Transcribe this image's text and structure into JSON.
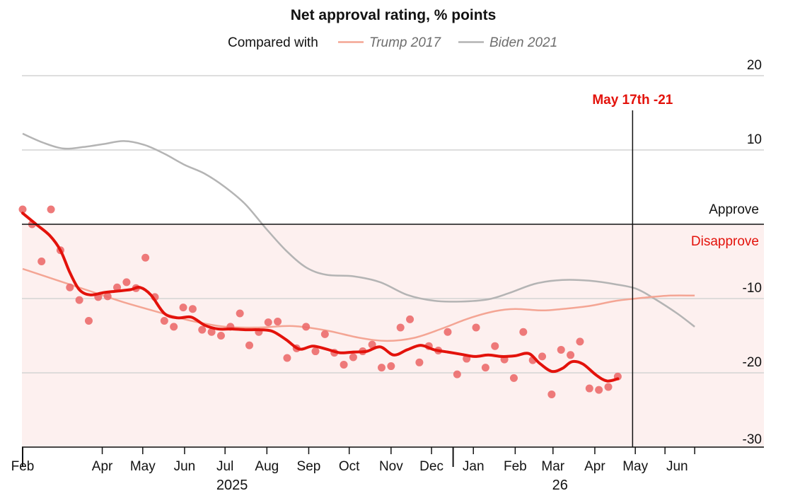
{
  "colors": {
    "main": "#e3120b",
    "dots": "#ec6c6c",
    "trump": "#f4a594",
    "biden": "#b4b4b4",
    "disapprove_fill": "#fdf0ef",
    "grid": "#d4d4d4",
    "axis": "#121212"
  },
  "chart_data": {
    "type": "scatter",
    "title": "Net approval rating, % points",
    "legend": {
      "lead": "Compared with",
      "placement": "top-center",
      "entries": [
        "Trump 2017",
        "Biden 2021"
      ]
    },
    "ylim": [
      -31,
      21
    ],
    "yticks": [
      20,
      10,
      -10,
      -20,
      -30
    ],
    "grid": true,
    "zero_labels": {
      "above": "Approve",
      "below": "Disapprove"
    },
    "x_range_days": [
      0,
      510
    ],
    "xticks": [
      {
        "label": "Feb",
        "day": 0
      },
      {
        "label": "Apr",
        "day": 59
      },
      {
        "label": "May",
        "day": 89
      },
      {
        "label": "Jun",
        "day": 120
      },
      {
        "label": "Jul",
        "day": 150
      },
      {
        "label": "Aug",
        "day": 181
      },
      {
        "label": "Sep",
        "day": 212
      },
      {
        "label": "Oct",
        "day": 242
      },
      {
        "label": "Nov",
        "day": 273
      },
      {
        "label": "Dec",
        "day": 303
      },
      {
        "label": "Jan",
        "day": 334
      },
      {
        "label": "Feb",
        "day": 365
      },
      {
        "label": "Mar",
        "day": 393
      },
      {
        "label": "Apr",
        "day": 424
      },
      {
        "label": "May",
        "day": 454
      },
      {
        "label": "Jun",
        "day": 485
      }
    ],
    "extra_ticks_days": [
      0,
      59,
      89,
      120,
      150,
      181,
      212,
      242,
      273,
      303,
      319,
      334,
      365,
      393,
      424,
      454,
      476,
      498
    ],
    "year_labels": [
      {
        "label": "2025",
        "day": 150
      },
      {
        "label": "26",
        "day": 393
      }
    ],
    "annotation": {
      "text": "May 17th -21",
      "day": 452
    },
    "series": [
      {
        "name": "Net approval",
        "kind": "points",
        "points": [
          [
            0,
            2
          ],
          [
            7,
            0
          ],
          [
            14,
            -5
          ],
          [
            21,
            2
          ],
          [
            28,
            -3.5
          ],
          [
            35,
            -8.5
          ],
          [
            42,
            -10.2
          ],
          [
            49,
            -13
          ],
          [
            56,
            -9.8
          ],
          [
            63,
            -9.7
          ],
          [
            70,
            -8.5
          ],
          [
            77,
            -7.8
          ],
          [
            84,
            -8.6
          ],
          [
            91,
            -4.5
          ],
          [
            98,
            -9.8
          ],
          [
            105,
            -13
          ],
          [
            112,
            -13.8
          ],
          [
            119,
            -11.2
          ],
          [
            126,
            -11.4
          ],
          [
            133,
            -14.2
          ],
          [
            140,
            -14.5
          ],
          [
            147,
            -15
          ],
          [
            154,
            -13.8
          ],
          [
            161,
            -12
          ],
          [
            168,
            -16.3
          ],
          [
            175,
            -14.5
          ],
          [
            182,
            -13.2
          ],
          [
            189,
            -13.1
          ],
          [
            196,
            -18
          ],
          [
            203,
            -16.7
          ],
          [
            210,
            -13.8
          ],
          [
            217,
            -17.1
          ],
          [
            224,
            -14.8
          ],
          [
            231,
            -17.3
          ],
          [
            238,
            -18.9
          ],
          [
            245,
            -17.9
          ],
          [
            252,
            -17.1
          ],
          [
            259,
            -16.2
          ],
          [
            266,
            -19.3
          ],
          [
            273,
            -19.1
          ],
          [
            280,
            -13.9
          ],
          [
            287,
            -12.8
          ],
          [
            294,
            -18.6
          ],
          [
            301,
            -16.4
          ],
          [
            308,
            -17
          ],
          [
            315,
            -14.5
          ],
          [
            322,
            -20.2
          ],
          [
            329,
            -18.1
          ],
          [
            336,
            -13.9
          ],
          [
            343,
            -19.3
          ],
          [
            350,
            -16.4
          ],
          [
            357,
            -18.2
          ],
          [
            364,
            -20.7
          ],
          [
            371,
            -14.5
          ],
          [
            378,
            -18.3
          ],
          [
            385,
            -17.8
          ],
          [
            392,
            -22.9
          ],
          [
            399,
            -16.9
          ],
          [
            406,
            -17.6
          ],
          [
            413,
            -15.8
          ],
          [
            420,
            -22.1
          ],
          [
            427,
            -22.3
          ],
          [
            434,
            -21.9
          ],
          [
            441,
            -20.5
          ]
        ]
      },
      {
        "name": "Net approval average",
        "kind": "trend",
        "points": [
          [
            0,
            1.5
          ],
          [
            10,
            0
          ],
          [
            20,
            -1.5
          ],
          [
            28,
            -3.5
          ],
          [
            35,
            -6.5
          ],
          [
            42,
            -8.8
          ],
          [
            50,
            -9.5
          ],
          [
            60,
            -9.2
          ],
          [
            70,
            -9
          ],
          [
            80,
            -8.8
          ],
          [
            87,
            -8.5
          ],
          [
            95,
            -9.5
          ],
          [
            105,
            -12
          ],
          [
            115,
            -12.6
          ],
          [
            125,
            -12.5
          ],
          [
            135,
            -13.6
          ],
          [
            145,
            -14.1
          ],
          [
            155,
            -14.1
          ],
          [
            165,
            -14.2
          ],
          [
            175,
            -14.2
          ],
          [
            185,
            -14.4
          ],
          [
            195,
            -15.5
          ],
          [
            205,
            -16.8
          ],
          [
            215,
            -16.4
          ],
          [
            225,
            -16.8
          ],
          [
            235,
            -17.3
          ],
          [
            245,
            -17.2
          ],
          [
            255,
            -17.1
          ],
          [
            265,
            -16.5
          ],
          [
            275,
            -17.6
          ],
          [
            285,
            -16.9
          ],
          [
            295,
            -16.3
          ],
          [
            305,
            -16.9
          ],
          [
            315,
            -17.2
          ],
          [
            325,
            -17.5
          ],
          [
            335,
            -17.8
          ],
          [
            345,
            -17.6
          ],
          [
            355,
            -17.8
          ],
          [
            365,
            -17.7
          ],
          [
            375,
            -17.4
          ],
          [
            383,
            -18.7
          ],
          [
            392,
            -19.8
          ],
          [
            400,
            -19.4
          ],
          [
            407,
            -18.5
          ],
          [
            415,
            -18.8
          ],
          [
            425,
            -20.3
          ],
          [
            433,
            -21.1
          ],
          [
            441,
            -20.8
          ]
        ]
      },
      {
        "name": "Trump 2017",
        "kind": "comparison",
        "points": [
          [
            0,
            -6
          ],
          [
            25,
            -7.5
          ],
          [
            50,
            -9
          ],
          [
            75,
            -10.5
          ],
          [
            100,
            -11.8
          ],
          [
            125,
            -13
          ],
          [
            150,
            -13.8
          ],
          [
            175,
            -13.9
          ],
          [
            200,
            -13.7
          ],
          [
            225,
            -14.3
          ],
          [
            250,
            -15.3
          ],
          [
            270,
            -15.7
          ],
          [
            290,
            -15.3
          ],
          [
            310,
            -14.1
          ],
          [
            330,
            -12.7
          ],
          [
            350,
            -11.7
          ],
          [
            365,
            -11.4
          ],
          [
            385,
            -11.6
          ],
          [
            400,
            -11.4
          ],
          [
            420,
            -11
          ],
          [
            440,
            -10.3
          ],
          [
            460,
            -9.9
          ],
          [
            480,
            -9.6
          ],
          [
            498,
            -9.6
          ]
        ]
      },
      {
        "name": "Biden 2021",
        "kind": "comparison",
        "points": [
          [
            0,
            12.2
          ],
          [
            15,
            11
          ],
          [
            30,
            10.2
          ],
          [
            45,
            10.4
          ],
          [
            60,
            10.8
          ],
          [
            75,
            11.2
          ],
          [
            90,
            10.7
          ],
          [
            105,
            9.5
          ],
          [
            120,
            8
          ],
          [
            135,
            6.8
          ],
          [
            150,
            5
          ],
          [
            165,
            2.7
          ],
          [
            180,
            -0.5
          ],
          [
            195,
            -3.5
          ],
          [
            210,
            -5.8
          ],
          [
            225,
            -6.8
          ],
          [
            245,
            -7
          ],
          [
            265,
            -7.8
          ],
          [
            285,
            -9.5
          ],
          [
            305,
            -10.3
          ],
          [
            325,
            -10.4
          ],
          [
            345,
            -10.1
          ],
          [
            360,
            -9.3
          ],
          [
            380,
            -8
          ],
          [
            400,
            -7.5
          ],
          [
            420,
            -7.6
          ],
          [
            440,
            -8.1
          ],
          [
            455,
            -8.7
          ],
          [
            468,
            -10
          ],
          [
            485,
            -12
          ],
          [
            498,
            -13.8
          ]
        ]
      }
    ]
  }
}
